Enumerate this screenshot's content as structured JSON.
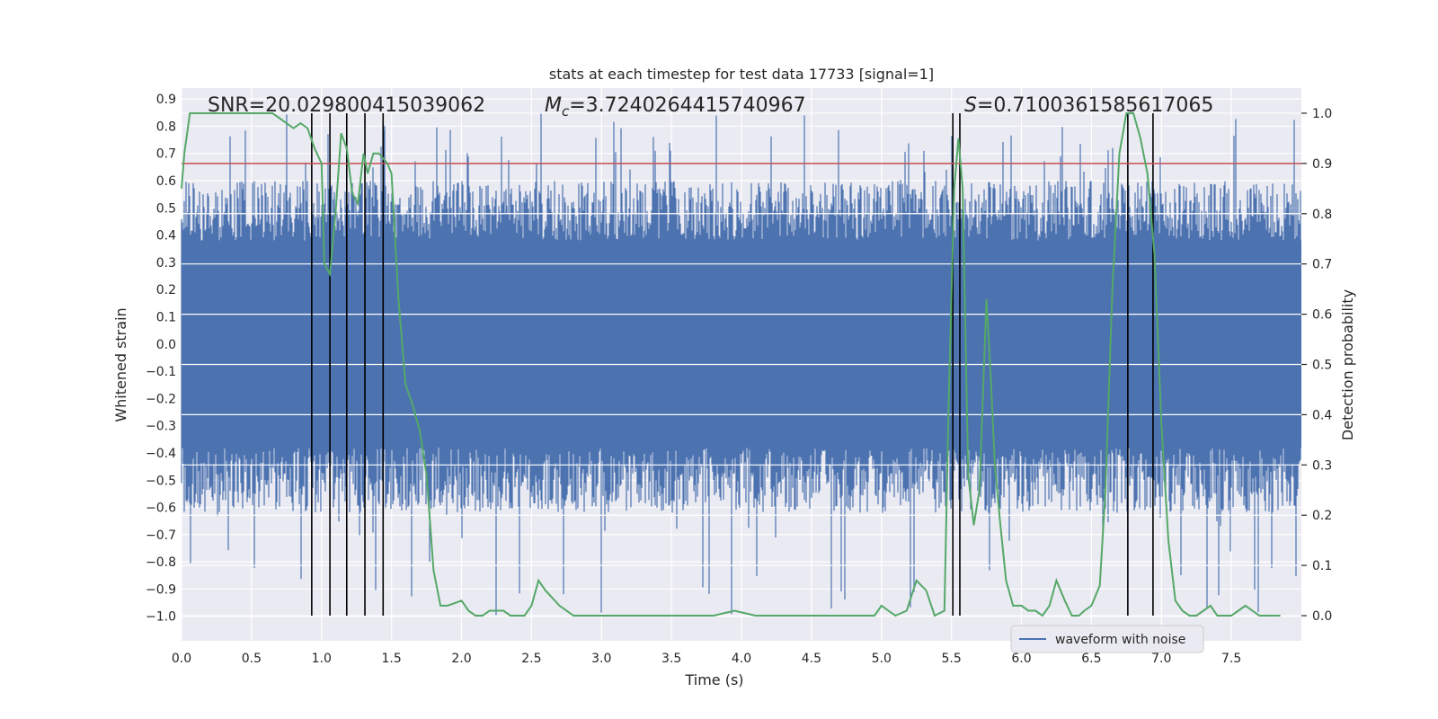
{
  "chart_data": {
    "type": "line",
    "title": "stats at each timestep for test data 17733 [signal=1]",
    "xlabel": "Time (s)",
    "ylabel_left": "Whitened strain",
    "ylabel_right": "Detection probability",
    "xlim": [
      0.0,
      8.0
    ],
    "ylim_left": [
      -1.09,
      0.94
    ],
    "ylim_right": [
      -0.05,
      1.05
    ],
    "grid": true,
    "x_ticks": [
      0.0,
      0.5,
      1.0,
      1.5,
      2.0,
      2.5,
      3.0,
      3.5,
      4.0,
      4.5,
      5.0,
      5.5,
      6.0,
      6.5,
      7.0,
      7.5
    ],
    "x_tick_labels": [
      "0.0",
      "0.5",
      "1.0",
      "1.5",
      "2.0",
      "2.5",
      "3.0",
      "3.5",
      "4.0",
      "4.5",
      "5.0",
      "5.5",
      "6.0",
      "6.5",
      "7.0",
      "7.5"
    ],
    "y_left_ticks": [
      0.9,
      0.8,
      0.7,
      0.6,
      0.5,
      0.4,
      0.3,
      0.2,
      0.1,
      0.0,
      -0.1,
      -0.2,
      -0.3,
      -0.4,
      -0.5,
      -0.6,
      -0.7,
      -0.8,
      -0.9,
      -1.0
    ],
    "y_left_tick_labels": [
      "0.9",
      "0.8",
      "0.7",
      "0.6",
      "0.5",
      "0.4",
      "0.3",
      "0.2",
      "0.1",
      "0.0",
      "−0.1",
      "−0.2",
      "−0.3",
      "−0.4",
      "−0.5",
      "−0.6",
      "−0.7",
      "−0.8",
      "−0.9",
      "−1.0"
    ],
    "y_right_ticks": [
      1.0,
      0.9,
      0.8,
      0.7,
      0.6,
      0.5,
      0.4,
      0.3,
      0.2,
      0.1,
      0.0
    ],
    "y_right_tick_labels": [
      "1.0",
      "0.9",
      "0.8",
      "0.7",
      "0.6",
      "0.5",
      "0.4",
      "0.3",
      "0.2",
      "0.1",
      "0.0"
    ],
    "annotations": {
      "snr": "SNR=20.029800415039062",
      "mc_symbol": "M",
      "mc_subscript": "c",
      "mc_value": "=3.7240264415740967",
      "s_symbol": "S",
      "s_value": "=0.7100361585617065"
    },
    "threshold": 0.9,
    "vertical_lines_x": [
      0.93,
      1.06,
      1.18,
      1.31,
      1.44,
      5.51,
      5.56,
      6.76,
      6.94
    ],
    "series": [
      {
        "name": "waveform with noise",
        "axis": "left",
        "style": "dense-noise",
        "band_low": -0.38,
        "band_high": 0.38,
        "peak_max": 0.85,
        "trough_min": -1.0
      },
      {
        "name": "detection probability",
        "axis": "right",
        "x": [
          0.0,
          0.02,
          0.06,
          0.1,
          0.2,
          0.3,
          0.4,
          0.5,
          0.6,
          0.65,
          0.7,
          0.75,
          0.8,
          0.85,
          0.9,
          0.95,
          1.0,
          1.02,
          1.06,
          1.1,
          1.14,
          1.18,
          1.22,
          1.26,
          1.3,
          1.33,
          1.37,
          1.41,
          1.44,
          1.47,
          1.5,
          1.55,
          1.6,
          1.65,
          1.7,
          1.75,
          1.8,
          1.85,
          1.9,
          2.0,
          2.05,
          2.1,
          2.15,
          2.2,
          2.3,
          2.35,
          2.45,
          2.5,
          2.55,
          2.6,
          2.7,
          2.8,
          2.9,
          3.1,
          3.3,
          3.4,
          3.6,
          3.8,
          3.95,
          4.1,
          4.3,
          4.5,
          4.7,
          4.85,
          4.95,
          5.0,
          5.05,
          5.1,
          5.18,
          5.25,
          5.32,
          5.38,
          5.45,
          5.48,
          5.52,
          5.55,
          5.58,
          5.62,
          5.66,
          5.7,
          5.75,
          5.78,
          5.81,
          5.85,
          5.89,
          5.94,
          6.0,
          6.05,
          6.1,
          6.15,
          6.2,
          6.25,
          6.31,
          6.36,
          6.41,
          6.45,
          6.5,
          6.56,
          6.6,
          6.65,
          6.7,
          6.75,
          6.8,
          6.85,
          6.9,
          6.95,
          7.0,
          7.05,
          7.1,
          7.15,
          7.2,
          7.25,
          7.3,
          7.35,
          7.4,
          7.45,
          7.5,
          7.55,
          7.6,
          7.65,
          7.7,
          7.75,
          7.8,
          7.85
        ],
        "y": [
          0.85,
          0.92,
          1.0,
          1.0,
          1.0,
          1.0,
          1.0,
          1.0,
          1.0,
          1.0,
          0.99,
          0.98,
          0.97,
          0.98,
          0.97,
          0.93,
          0.9,
          0.7,
          0.68,
          0.8,
          0.96,
          0.93,
          0.84,
          0.82,
          0.92,
          0.88,
          0.92,
          0.92,
          0.91,
          0.9,
          0.88,
          0.63,
          0.46,
          0.42,
          0.37,
          0.28,
          0.09,
          0.02,
          0.02,
          0.03,
          0.01,
          0.0,
          0.0,
          0.01,
          0.01,
          0.0,
          0.0,
          0.02,
          0.07,
          0.05,
          0.02,
          0.0,
          0.0,
          0.0,
          0.0,
          0.0,
          0.0,
          0.0,
          0.01,
          0.0,
          0.0,
          0.0,
          0.0,
          0.0,
          0.0,
          0.02,
          0.01,
          0.0,
          0.01,
          0.07,
          0.05,
          0.0,
          0.01,
          0.42,
          0.85,
          0.95,
          0.85,
          0.28,
          0.18,
          0.25,
          0.63,
          0.48,
          0.3,
          0.18,
          0.07,
          0.02,
          0.02,
          0.01,
          0.01,
          0.0,
          0.02,
          0.07,
          0.03,
          0.0,
          0.0,
          0.01,
          0.02,
          0.06,
          0.25,
          0.65,
          0.92,
          1.0,
          1.0,
          0.95,
          0.88,
          0.72,
          0.38,
          0.15,
          0.03,
          0.01,
          0.0,
          0.0,
          0.01,
          0.02,
          0.0,
          0.0,
          0.0,
          0.01,
          0.02,
          0.01,
          0.0,
          0.0,
          0.0,
          0.0
        ]
      }
    ],
    "legend": {
      "position": "lower-right",
      "entries": [
        "waveform with noise"
      ]
    },
    "colors": {
      "waveform": "#4c72b0",
      "probability": "#55a868",
      "threshold": "#c44e52",
      "vlines": "#000000",
      "plot_bg": "#eaeaf2",
      "grid": "#ffffff",
      "text": "#262626"
    }
  }
}
